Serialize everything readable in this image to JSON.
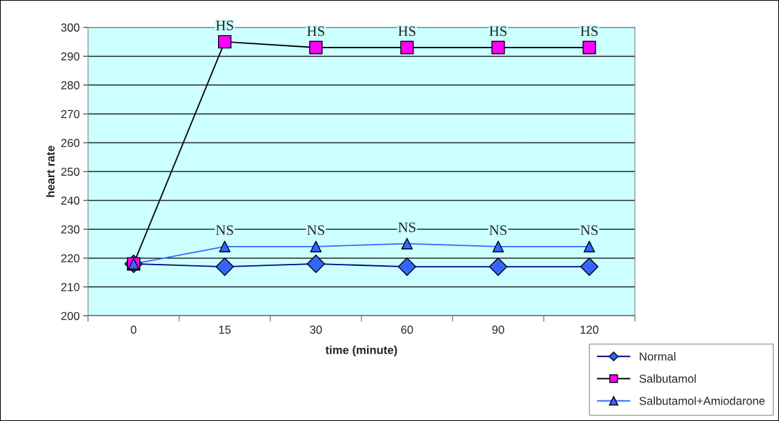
{
  "chart_data": {
    "type": "line",
    "xlabel": "time (minute)",
    "ylabel": "heart rate",
    "categories": [
      "0",
      "15",
      "30",
      "60",
      "90",
      "120"
    ],
    "series": [
      {
        "name": "Normal",
        "color": "#000080",
        "colors": [
          "#3366ff",
          "#3366ff",
          "#3366ff",
          "#3366ff",
          "#3366ff",
          "#3366ff"
        ],
        "marker": "diamond",
        "values": [
          218,
          217,
          218,
          217,
          217,
          217
        ]
      },
      {
        "name": "Salbutamol",
        "color": "#000000",
        "colors": [
          "#ff00ff",
          "#ff00ff",
          "#ff00ff",
          "#ff00ff",
          "#ff00ff",
          "#ff00ff"
        ],
        "marker": "square",
        "values": [
          218,
          295,
          293,
          293,
          293,
          293
        ]
      },
      {
        "name": "Salbutamol+Amiodarone",
        "color": "#3366ff",
        "colors": [
          "#3366ff",
          "#3366ff",
          "#3366ff",
          "#3366ff",
          "#3366ff",
          "#3366ff"
        ],
        "marker": "triangle",
        "values": [
          218,
          224,
          224,
          225,
          224,
          224
        ]
      }
    ],
    "annotations": [
      {
        "text": "HS",
        "x": "15",
        "y": 295
      },
      {
        "text": "HS",
        "x": "30",
        "y": 293
      },
      {
        "text": "HS",
        "x": "60",
        "y": 293
      },
      {
        "text": "HS",
        "x": "90",
        "y": 293
      },
      {
        "text": "HS",
        "x": "120",
        "y": 293
      },
      {
        "text": "NS",
        "x": "15",
        "y": 224
      },
      {
        "text": "NS",
        "x": "30",
        "y": 224
      },
      {
        "text": "NS",
        "x": "60",
        "y": 225
      },
      {
        "text": "NS",
        "x": "90",
        "y": 224
      },
      {
        "text": "NS",
        "x": "120",
        "y": 224
      }
    ],
    "ylim": [
      200,
      300
    ],
    "yticks": [
      200,
      210,
      220,
      230,
      240,
      250,
      260,
      270,
      280,
      290,
      300
    ],
    "grid": "y",
    "legend": "bottom right"
  }
}
